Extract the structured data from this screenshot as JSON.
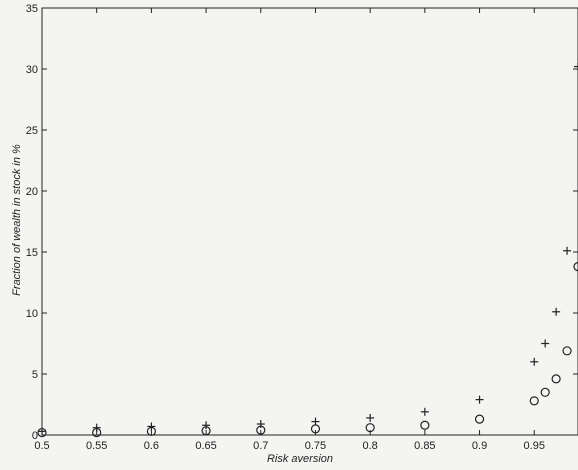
{
  "chart_data": {
    "type": "scatter",
    "title": "",
    "xlabel": "Risk aversion",
    "ylabel": "Fraction of wealth in stock in %",
    "xlim": [
      0.5,
      0.99
    ],
    "ylim": [
      0,
      35
    ],
    "grid": false,
    "xticks": [
      0.5,
      0.55,
      0.6,
      0.65,
      0.7,
      0.75,
      0.8,
      0.85,
      0.9,
      0.95
    ],
    "xtick_labels": [
      "0.5",
      "0.55",
      "0.6",
      "0.65",
      "0.7",
      "0.75",
      "0.8",
      "0.85",
      "0.9",
      "0.95"
    ],
    "yticks": [
      0,
      5,
      10,
      15,
      20,
      25,
      30,
      35
    ],
    "ytick_labels": [
      "0",
      "5",
      "10",
      "15",
      "20",
      "25",
      "30",
      "35"
    ],
    "series": [
      {
        "marker": "plus",
        "x": [
          0.5,
          0.55,
          0.6,
          0.65,
          0.7,
          0.75,
          0.8,
          0.85,
          0.9,
          0.95,
          0.96,
          0.97,
          0.98,
          0.99
        ],
        "y": [
          0.3,
          0.6,
          0.7,
          0.8,
          0.9,
          1.1,
          1.4,
          1.9,
          2.9,
          6.0,
          7.5,
          10.1,
          15.1,
          30.2
        ]
      },
      {
        "marker": "circle",
        "x": [
          0.5,
          0.55,
          0.6,
          0.65,
          0.7,
          0.75,
          0.8,
          0.85,
          0.9,
          0.95,
          0.96,
          0.97,
          0.98,
          0.99
        ],
        "y": [
          0.2,
          0.2,
          0.3,
          0.35,
          0.4,
          0.5,
          0.6,
          0.8,
          1.3,
          2.8,
          3.5,
          4.6,
          6.9,
          13.8
        ]
      }
    ]
  }
}
